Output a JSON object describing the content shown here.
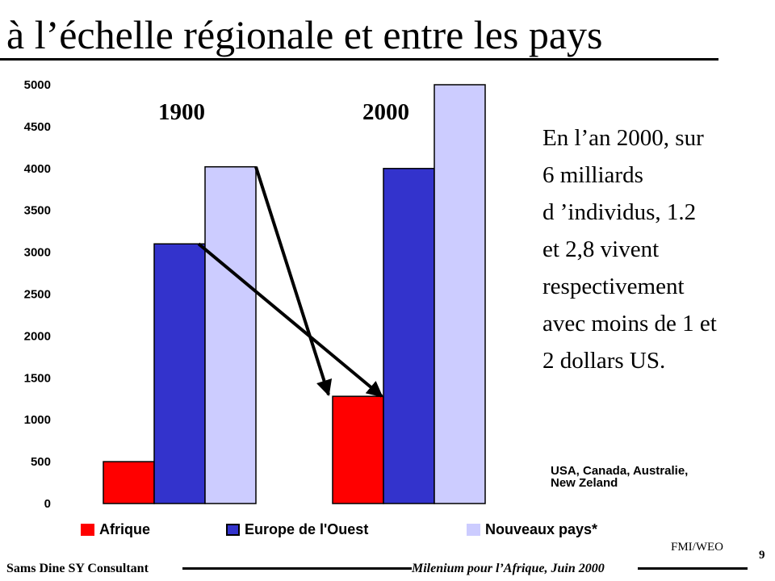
{
  "page": {
    "title": "à l’échelle régionale et entre les pays",
    "note_lines": [
      "En l’an 2000, sur",
      "6 milliards",
      "d ’individus,  1.2",
      "et 2,8 vivent",
      "respectivement",
      "avec moins de 1 et",
      "2 dollars  US."
    ],
    "footnote_lines": [
      "  USA, Canada, Australie,",
      "New Zeland"
    ],
    "source": "FMI/WEO",
    "page_number": "9",
    "author": "Sams Dine SY Consultant",
    "event": "Milenium pour l’Afrique, Juin 2000"
  },
  "chart_data": {
    "type": "bar",
    "categories": [
      "1900",
      "2000"
    ],
    "series": [
      {
        "name": "Afrique",
        "color": "#ff0000",
        "values": [
          500,
          1280
        ]
      },
      {
        "name": "Europe de l'Ouest",
        "color": "#3333cc",
        "values": [
          3100,
          4000
        ]
      },
      {
        "name": "Nouveaux pays*",
        "color": "#ccccff",
        "values": [
          4020,
          5000
        ]
      }
    ],
    "y_ticks": [
      "5000",
      "4500",
      "4000",
      "3500",
      "3000",
      "2500",
      "2000",
      "1500",
      "1000",
      "500",
      "0"
    ],
    "ylim": [
      0,
      5000
    ],
    "grid": false,
    "legend_position": "bottom",
    "annotations": [
      "arrow from Nouveaux pays* 1900 to Afrique 2000",
      "arrow from Europe de l'Ouest 1900 to Afrique 2000"
    ]
  }
}
